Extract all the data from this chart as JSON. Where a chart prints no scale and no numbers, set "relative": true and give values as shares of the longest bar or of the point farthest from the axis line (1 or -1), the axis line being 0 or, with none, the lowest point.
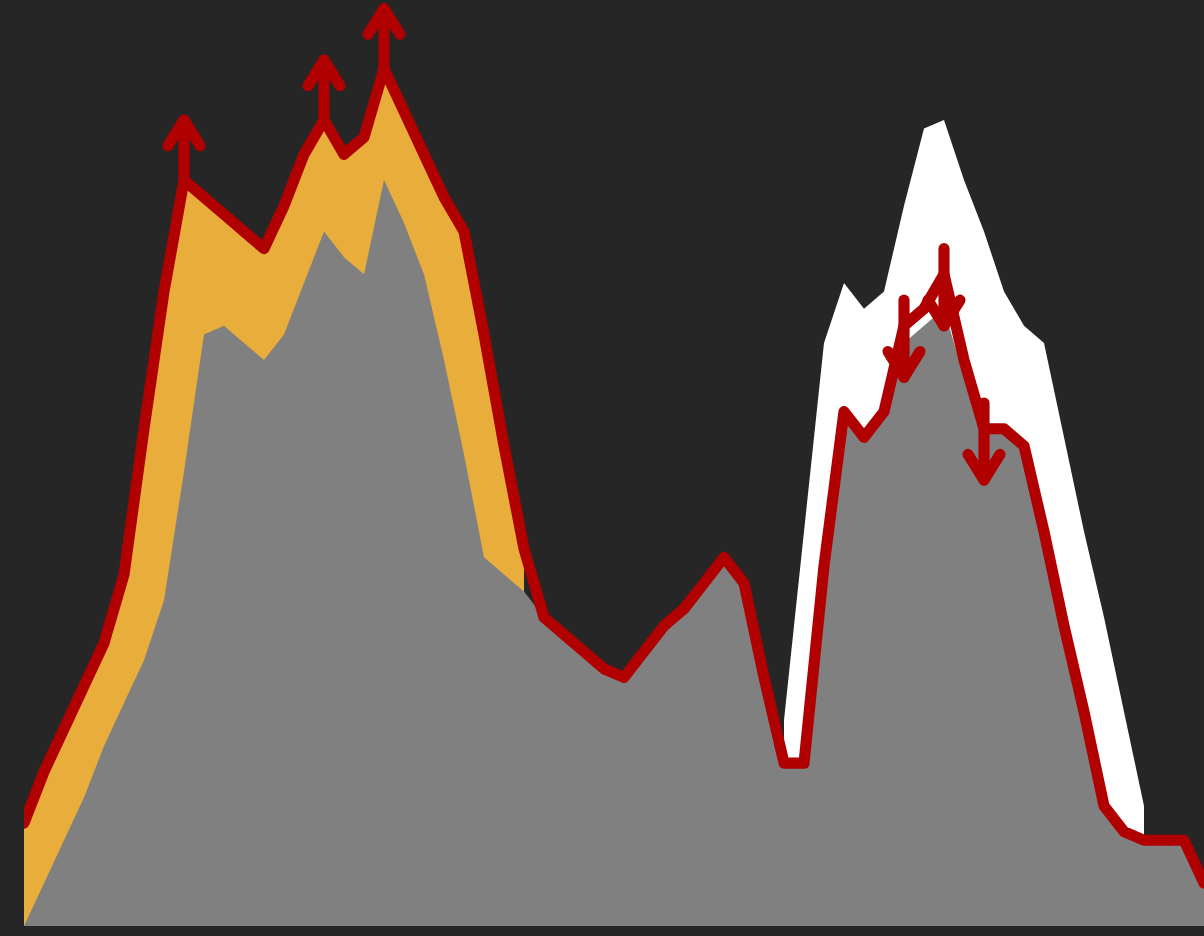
{
  "chart_data": {
    "type": "area",
    "relative": true,
    "tick_labels": false,
    "categories": [
      null,
      null,
      null,
      null,
      null,
      null,
      null,
      null,
      null,
      null,
      null,
      null,
      null,
      null,
      null,
      null,
      null,
      null,
      null,
      null,
      null,
      null,
      null,
      null,
      null,
      null,
      null,
      null,
      null,
      null,
      null,
      null,
      null,
      null,
      null,
      null,
      null,
      null,
      null,
      null,
      null,
      null,
      null,
      null,
      null,
      null,
      null,
      null,
      null,
      null,
      null,
      null,
      null,
      null,
      null,
      null,
      null,
      null,
      null,
      null
    ],
    "series": [
      {
        "color": "#ffffff",
        "values": [
          null,
          null,
          null,
          null,
          null,
          null,
          null,
          null,
          null,
          null,
          null,
          null,
          null,
          null,
          null,
          null,
          null,
          null,
          null,
          null,
          null,
          null,
          null,
          null,
          null,
          null,
          null,
          null,
          null,
          null,
          null,
          null,
          null,
          null,
          null,
          null,
          null,
          null,
          0.24,
          0.46,
          0.68,
          0.75,
          0.72,
          0.74,
          0.84,
          0.93,
          0.94,
          0.87,
          0.81,
          0.74,
          0.7,
          0.68,
          0.57,
          0.46,
          0.36,
          0.25,
          0.14,
          null,
          null,
          null
        ]
      },
      {
        "color": "#e8ad3a",
        "values": [
          0.12,
          0.18,
          0.23,
          0.28,
          0.33,
          0.41,
          0.58,
          0.74,
          0.87,
          0.85,
          0.83,
          0.81,
          0.79,
          0.84,
          0.9,
          0.94,
          0.9,
          0.92,
          1,
          0.95,
          0.9,
          0.85,
          0.81,
          0.69,
          0.56,
          0.44,
          null,
          null,
          null,
          null,
          null,
          null,
          null,
          null,
          null,
          null,
          null,
          null,
          null,
          null,
          null,
          null,
          null,
          null,
          null,
          null,
          null,
          null,
          null,
          null,
          null,
          null,
          null,
          null,
          null,
          null,
          null,
          null,
          null,
          null
        ]
      },
      {
        "color": "#808080",
        "values": [
          0,
          0.05,
          0.1,
          0.15,
          0.21,
          0.26,
          0.31,
          0.38,
          0.53,
          0.69,
          0.7,
          0.68,
          0.66,
          0.69,
          0.75,
          0.81,
          0.78,
          0.76,
          0.87,
          0.82,
          0.76,
          0.66,
          0.55,
          0.43,
          0.41,
          0.39,
          0.36,
          0.34,
          0.32,
          0.3,
          0.29,
          0.32,
          0.35,
          0.37,
          0.4,
          0.43,
          0.4,
          0.29,
          0.19,
          0.19,
          0.42,
          0.6,
          0.57,
          0.6,
          0.68,
          0.7,
          0.72,
          0.64,
          0.58,
          0.58,
          0.56,
          0.46,
          0.35,
          0.25,
          0.14,
          0.11,
          0.1,
          0.1,
          0.1,
          0.05
        ]
      },
      {
        "type": "line",
        "color": "#b00000",
        "values": [
          0.12,
          0.18,
          0.23,
          0.28,
          0.33,
          0.41,
          0.58,
          0.74,
          0.87,
          0.85,
          0.83,
          0.81,
          0.79,
          0.84,
          0.9,
          0.94,
          0.9,
          0.92,
          1,
          0.95,
          0.9,
          0.85,
          0.81,
          0.69,
          0.56,
          0.44,
          0.36,
          0.34,
          0.32,
          0.3,
          0.29,
          0.32,
          0.35,
          0.37,
          0.4,
          0.43,
          0.4,
          0.29,
          0.19,
          0.19,
          0.42,
          0.6,
          0.57,
          0.6,
          0.7,
          0.72,
          0.76,
          0.66,
          0.58,
          0.58,
          0.56,
          0.46,
          0.35,
          0.25,
          0.14,
          0.11,
          0.1,
          0.1,
          0.1,
          0.05
        ]
      }
    ]
  }
}
